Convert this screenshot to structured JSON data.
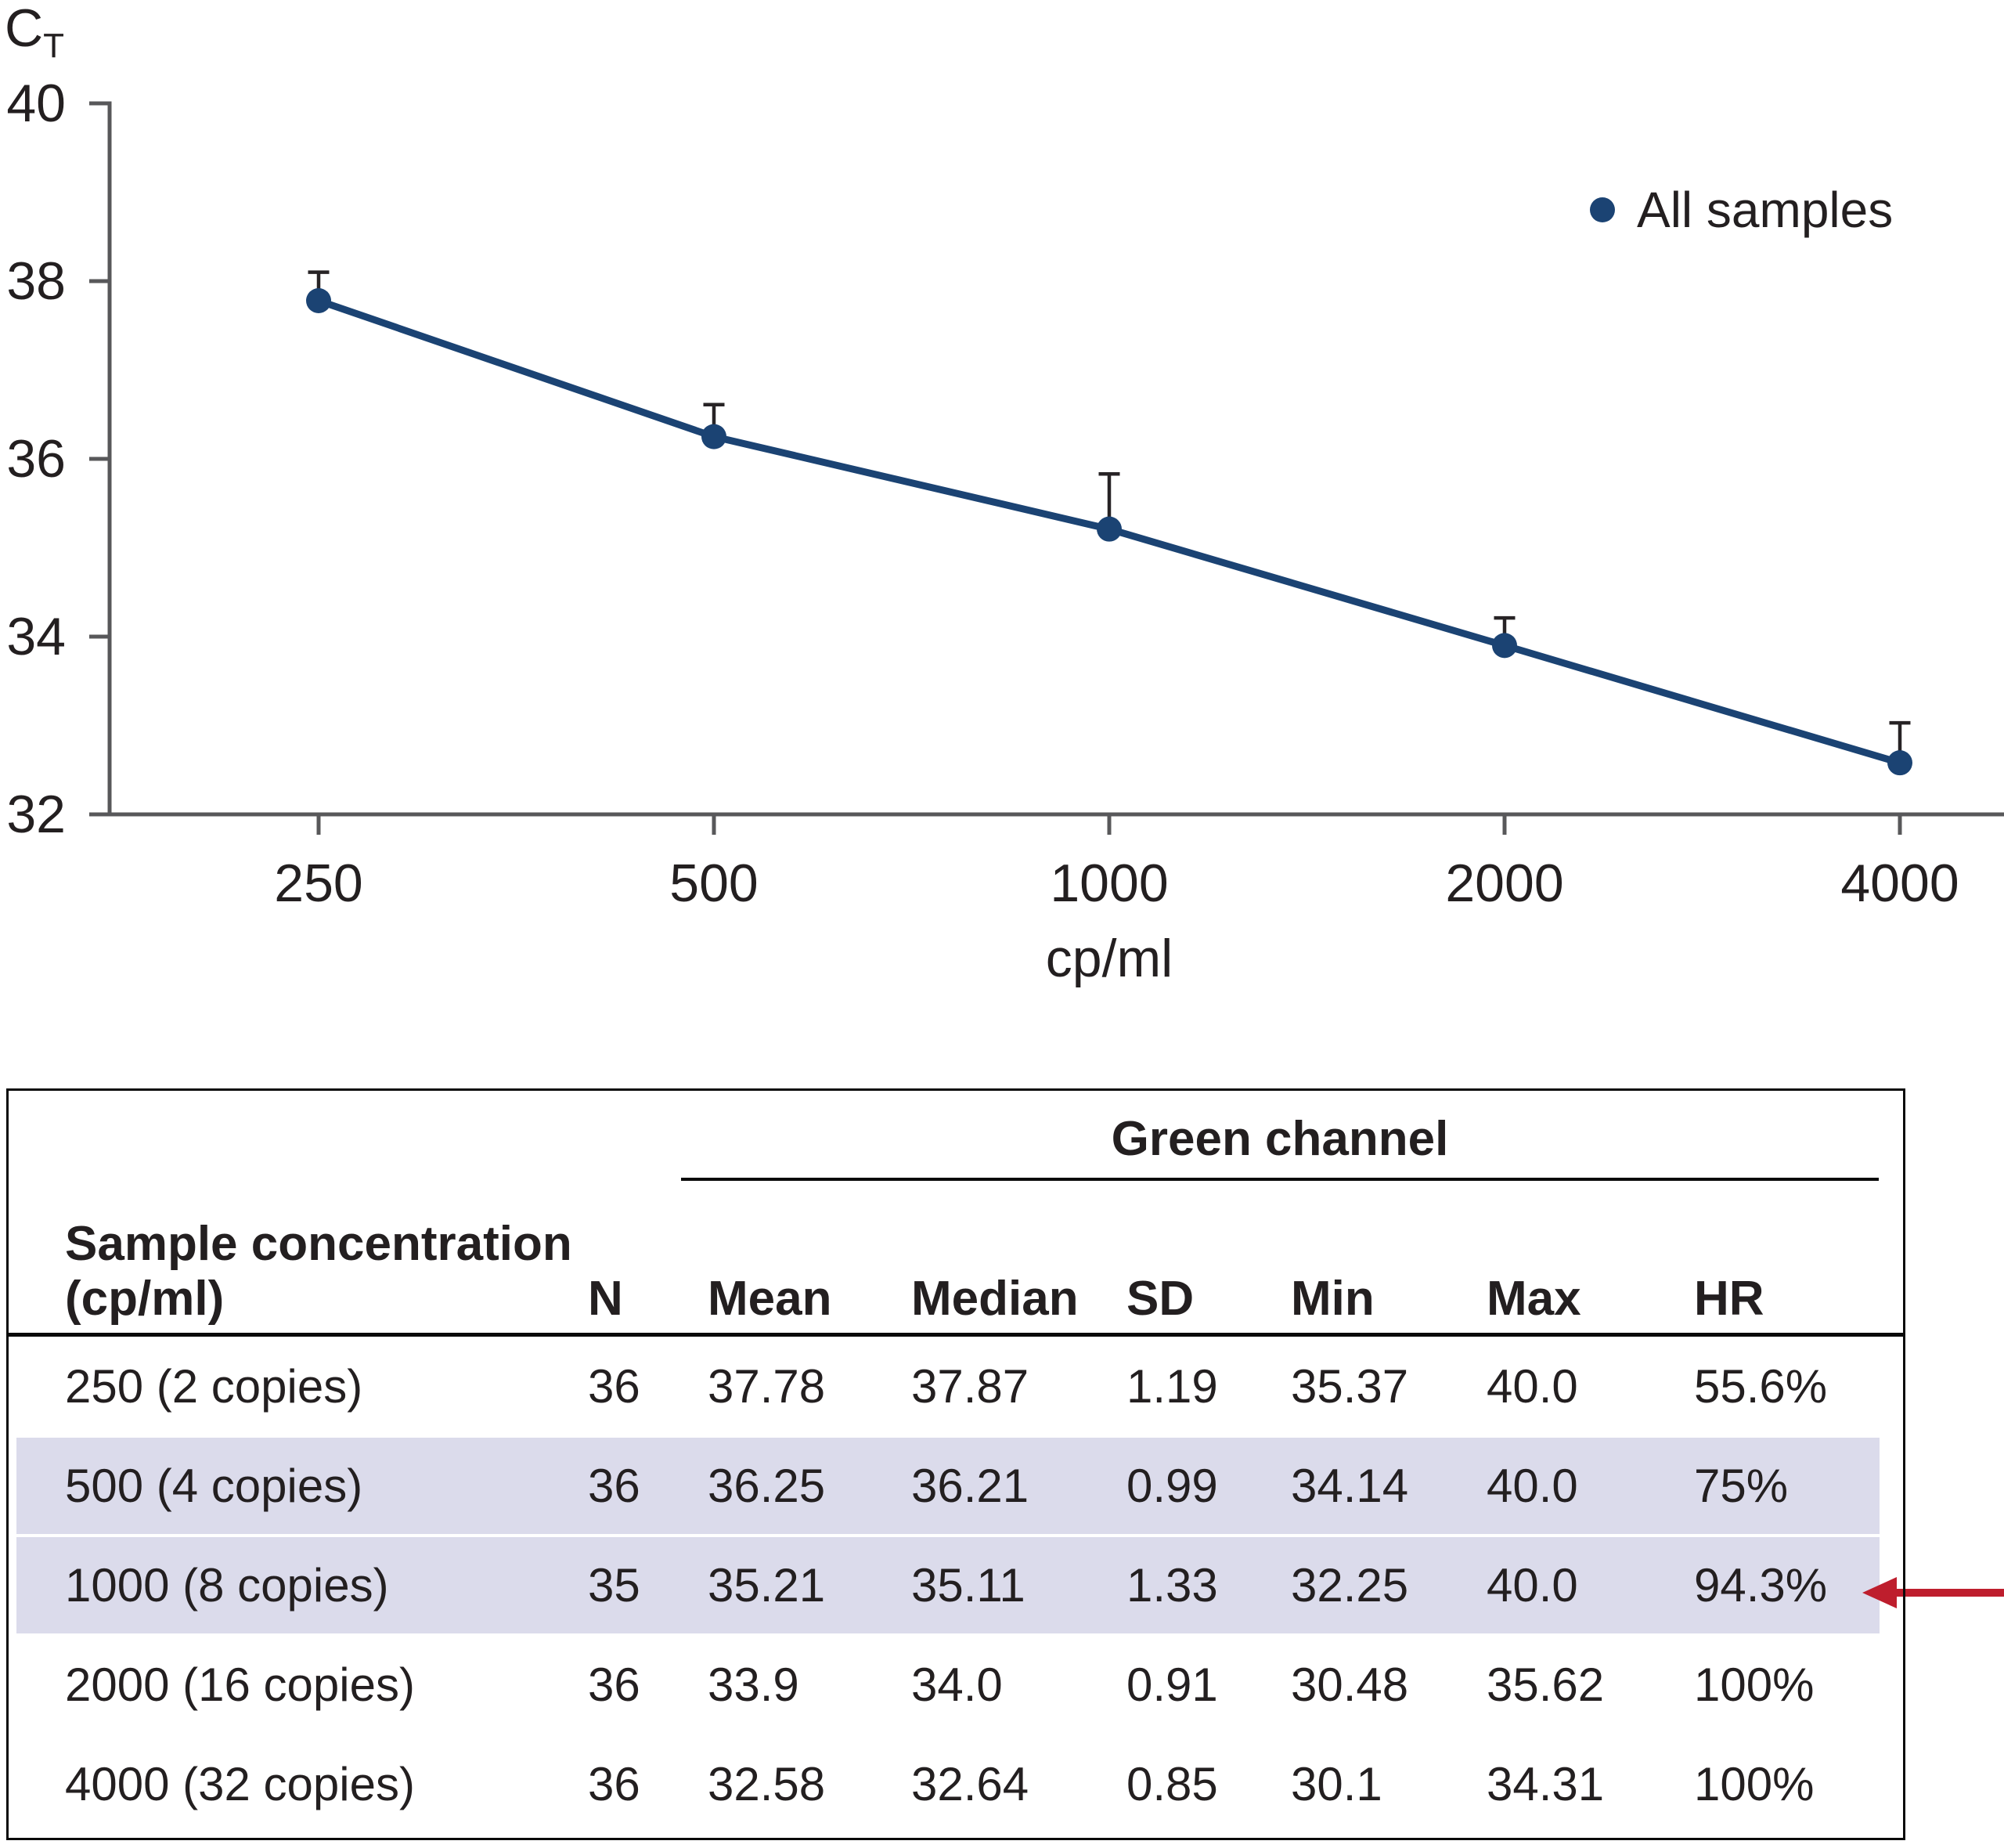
{
  "chart": {
    "y_axis_label": {
      "main": "C",
      "sub": "T"
    },
    "axis_color": "#58585a",
    "error_bar_color": "#272325",
    "tick_label_color": "#231f20"
  },
  "chart_data": {
    "type": "line",
    "title": "",
    "x": [
      250,
      500,
      1000,
      2000,
      4000
    ],
    "x_scale": "log",
    "xlabel": "cp/ml",
    "ylabel": "CT",
    "ylim": [
      32,
      40
    ],
    "yticks": [
      40,
      38,
      36,
      34,
      32
    ],
    "grid": false,
    "legend_position": "top-right",
    "series": [
      {
        "name": "All samples",
        "color": "#1b4373",
        "marker": "circle",
        "values": [
          37.78,
          36.25,
          35.21,
          33.9,
          32.58
        ],
        "upper_errors": [
          0.32,
          0.36,
          0.62,
          0.31,
          0.45
        ]
      }
    ]
  },
  "table": {
    "group_header": "Green channel",
    "row_header_line1": "Sample concentration",
    "row_header_line2": "(cp/ml)",
    "columns": [
      "N",
      "Mean",
      "Median",
      "SD",
      "Min",
      "Max",
      "HR"
    ],
    "rows": [
      {
        "label": "250 (2 copies)",
        "n": "36",
        "mean": "37.78",
        "median": "37.87",
        "sd": "1.19",
        "min": "35.37",
        "max": "40.0",
        "hr": "55.6%",
        "highlight": false,
        "arrow": false
      },
      {
        "label": "500 (4 copies)",
        "n": "36",
        "mean": "36.25",
        "median": "36.21",
        "sd": "0.99",
        "min": "34.14",
        "max": "40.0",
        "hr": "75%",
        "highlight": true,
        "arrow": false
      },
      {
        "label": "1000 (8 copies)",
        "n": "35",
        "mean": "35.21",
        "median": "35.11",
        "sd": "1.33",
        "min": "32.25",
        "max": "40.0",
        "hr": "94.3%",
        "highlight": true,
        "arrow": true
      },
      {
        "label": "2000 (16 copies)",
        "n": "36",
        "mean": "33.9",
        "median": "34.0",
        "sd": "0.91",
        "min": "30.48",
        "max": "35.62",
        "hr": "100%",
        "highlight": false,
        "arrow": false
      },
      {
        "label": "4000 (32 copies)",
        "n": "36",
        "mean": "32.58",
        "median": "32.64",
        "sd": "0.85",
        "min": "30.1",
        "max": "34.31",
        "hr": "100%",
        "highlight": false,
        "arrow": false
      }
    ],
    "highlight_color": "#dbdbeb",
    "arrow_color": "#be1e2d",
    "border_color": "#0a0a0a"
  }
}
